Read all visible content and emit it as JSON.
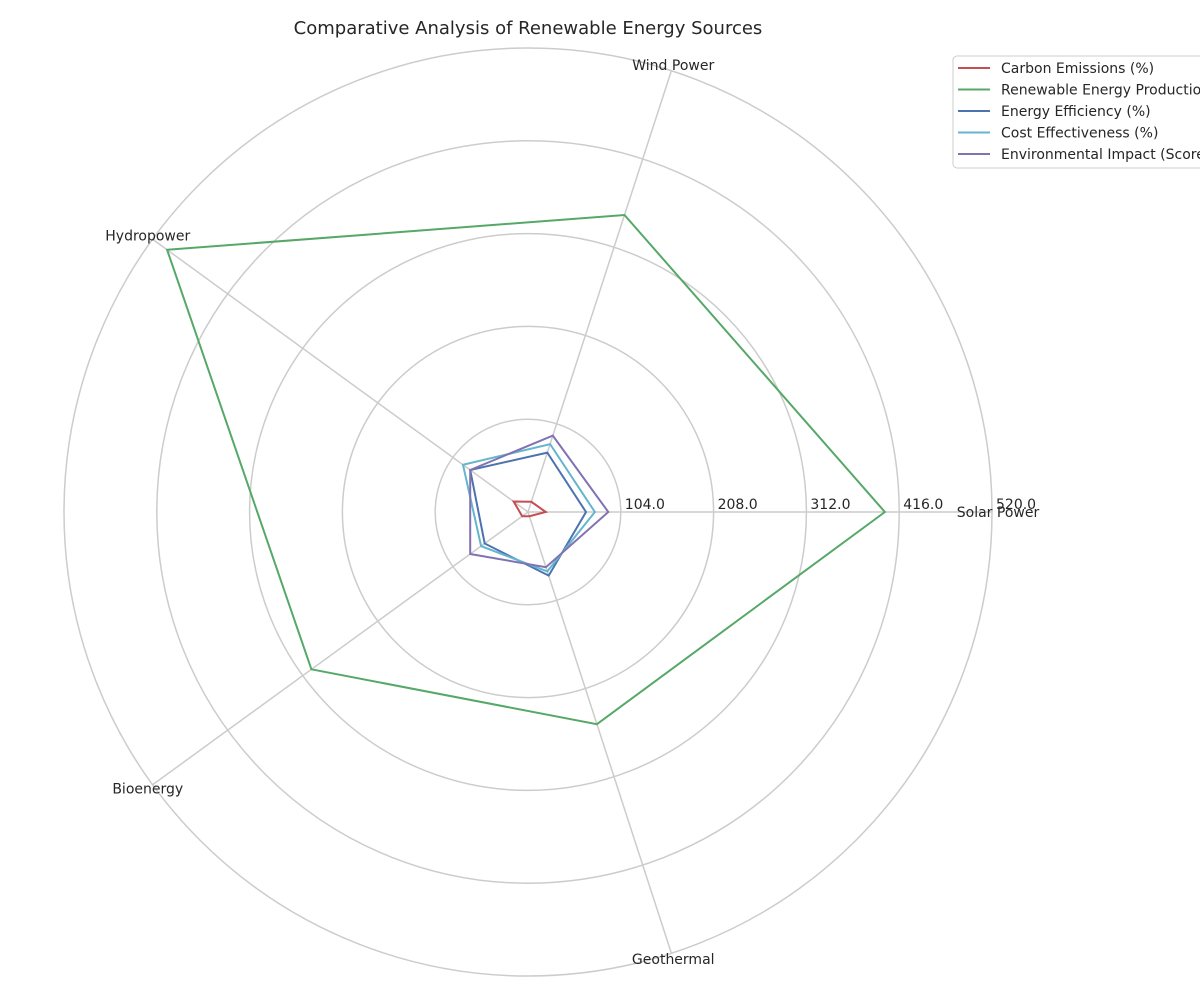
{
  "chart_data": {
    "type": "radar",
    "title": "Comparative Analysis of Renewable Energy Sources",
    "categories": [
      "Solar Power",
      "Wind Power",
      "Hydropower",
      "Bioenergy",
      "Geothermal"
    ],
    "radial_ticks": [
      "104.0",
      "208.0",
      "312.0",
      "416.0",
      "520.0"
    ],
    "rlim": [
      0,
      520
    ],
    "grid": true,
    "legend_position": "top-right",
    "series": [
      {
        "name": "Carbon Emissions (%)",
        "color": "#c44e52",
        "values": [
          20,
          12,
          20,
          8,
          5
        ]
      },
      {
        "name": "Renewable Energy Production (GWh)",
        "color": "#55a868",
        "values": [
          400,
          350,
          500,
          300,
          250
        ]
      },
      {
        "name": "Energy Efficiency (%)",
        "color": "#4c72b0",
        "values": [
          65,
          70,
          80,
          60,
          75
        ]
      },
      {
        "name": "Cost Effectiveness (%)",
        "color": "#64b5cd",
        "values": [
          75,
          80,
          90,
          65,
          70
        ]
      },
      {
        "name": "Environmental Impact (Score)",
        "color": "#8172b2",
        "values": [
          90,
          90,
          80,
          80,
          65
        ]
      }
    ]
  }
}
